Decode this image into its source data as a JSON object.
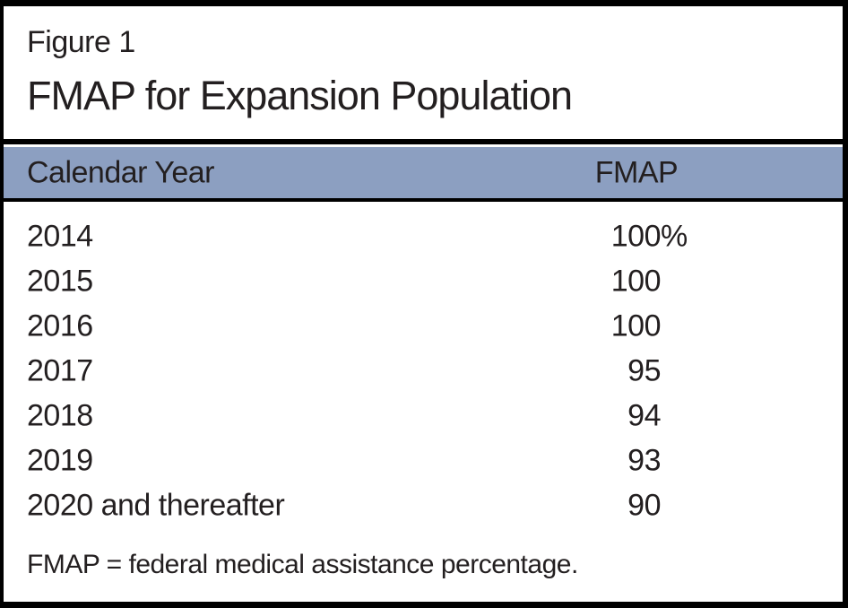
{
  "figure": {
    "label": "Figure 1",
    "title": "FMAP for Expansion Population",
    "footnote": "FMAP = federal medical assistance percentage."
  },
  "table": {
    "columns": [
      "Calendar Year",
      "FMAP"
    ],
    "rows": [
      {
        "year": "2014",
        "fmap": "100",
        "suffix": "%"
      },
      {
        "year": "2015",
        "fmap": "100",
        "suffix": ""
      },
      {
        "year": "2016",
        "fmap": "100",
        "suffix": ""
      },
      {
        "year": "2017",
        "fmap": "95",
        "suffix": ""
      },
      {
        "year": "2018",
        "fmap": "94",
        "suffix": ""
      },
      {
        "year": "2019",
        "fmap": "93",
        "suffix": ""
      },
      {
        "year": "2020 and thereafter",
        "fmap": "90",
        "suffix": ""
      }
    ]
  },
  "chart_data": {
    "type": "table",
    "title": "FMAP for Expansion Population",
    "categories": [
      "2014",
      "2015",
      "2016",
      "2017",
      "2018",
      "2019",
      "2020 and thereafter"
    ],
    "values": [
      100,
      100,
      100,
      95,
      94,
      93,
      90
    ],
    "xlabel": "Calendar Year",
    "ylabel": "FMAP"
  },
  "colors": {
    "header_bg": "#8c9fc1",
    "frame": "#000000",
    "text": "#231f20",
    "background": "#ffffff"
  }
}
